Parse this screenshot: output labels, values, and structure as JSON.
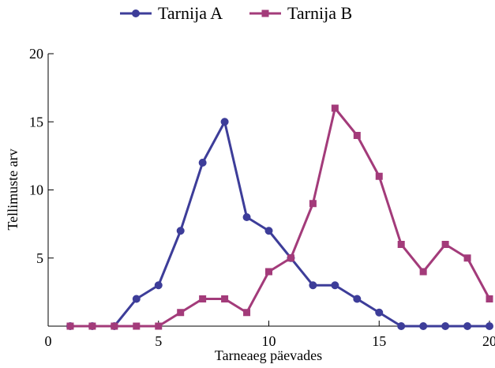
{
  "chart_data": {
    "type": "line",
    "title": "",
    "xlabel": "Tarneaeg päevades",
    "ylabel": "Tellimuste arv",
    "xlim": [
      0,
      20
    ],
    "ylim": [
      0,
      20
    ],
    "xticks": [
      0,
      5,
      10,
      15,
      20
    ],
    "yticks": [
      5,
      10,
      15,
      20
    ],
    "grid": false,
    "legend_position": "top-center",
    "x": [
      1,
      2,
      3,
      4,
      5,
      6,
      7,
      8,
      9,
      10,
      11,
      12,
      13,
      14,
      15,
      16,
      17,
      18,
      19,
      20
    ],
    "series": [
      {
        "name": "Tarnija A",
        "color": "#3d3d99",
        "marker": "circle",
        "values": [
          0,
          0,
          0,
          2,
          3,
          7,
          12,
          15,
          8,
          7,
          5,
          3,
          3,
          2,
          1,
          0,
          0,
          0,
          0,
          0
        ]
      },
      {
        "name": "Tarnija B",
        "color": "#a33b7a",
        "marker": "square",
        "values": [
          0,
          0,
          0,
          0,
          0,
          1,
          2,
          2,
          1,
          4,
          5,
          9,
          16,
          14,
          11,
          6,
          4,
          6,
          5,
          2
        ]
      }
    ]
  }
}
